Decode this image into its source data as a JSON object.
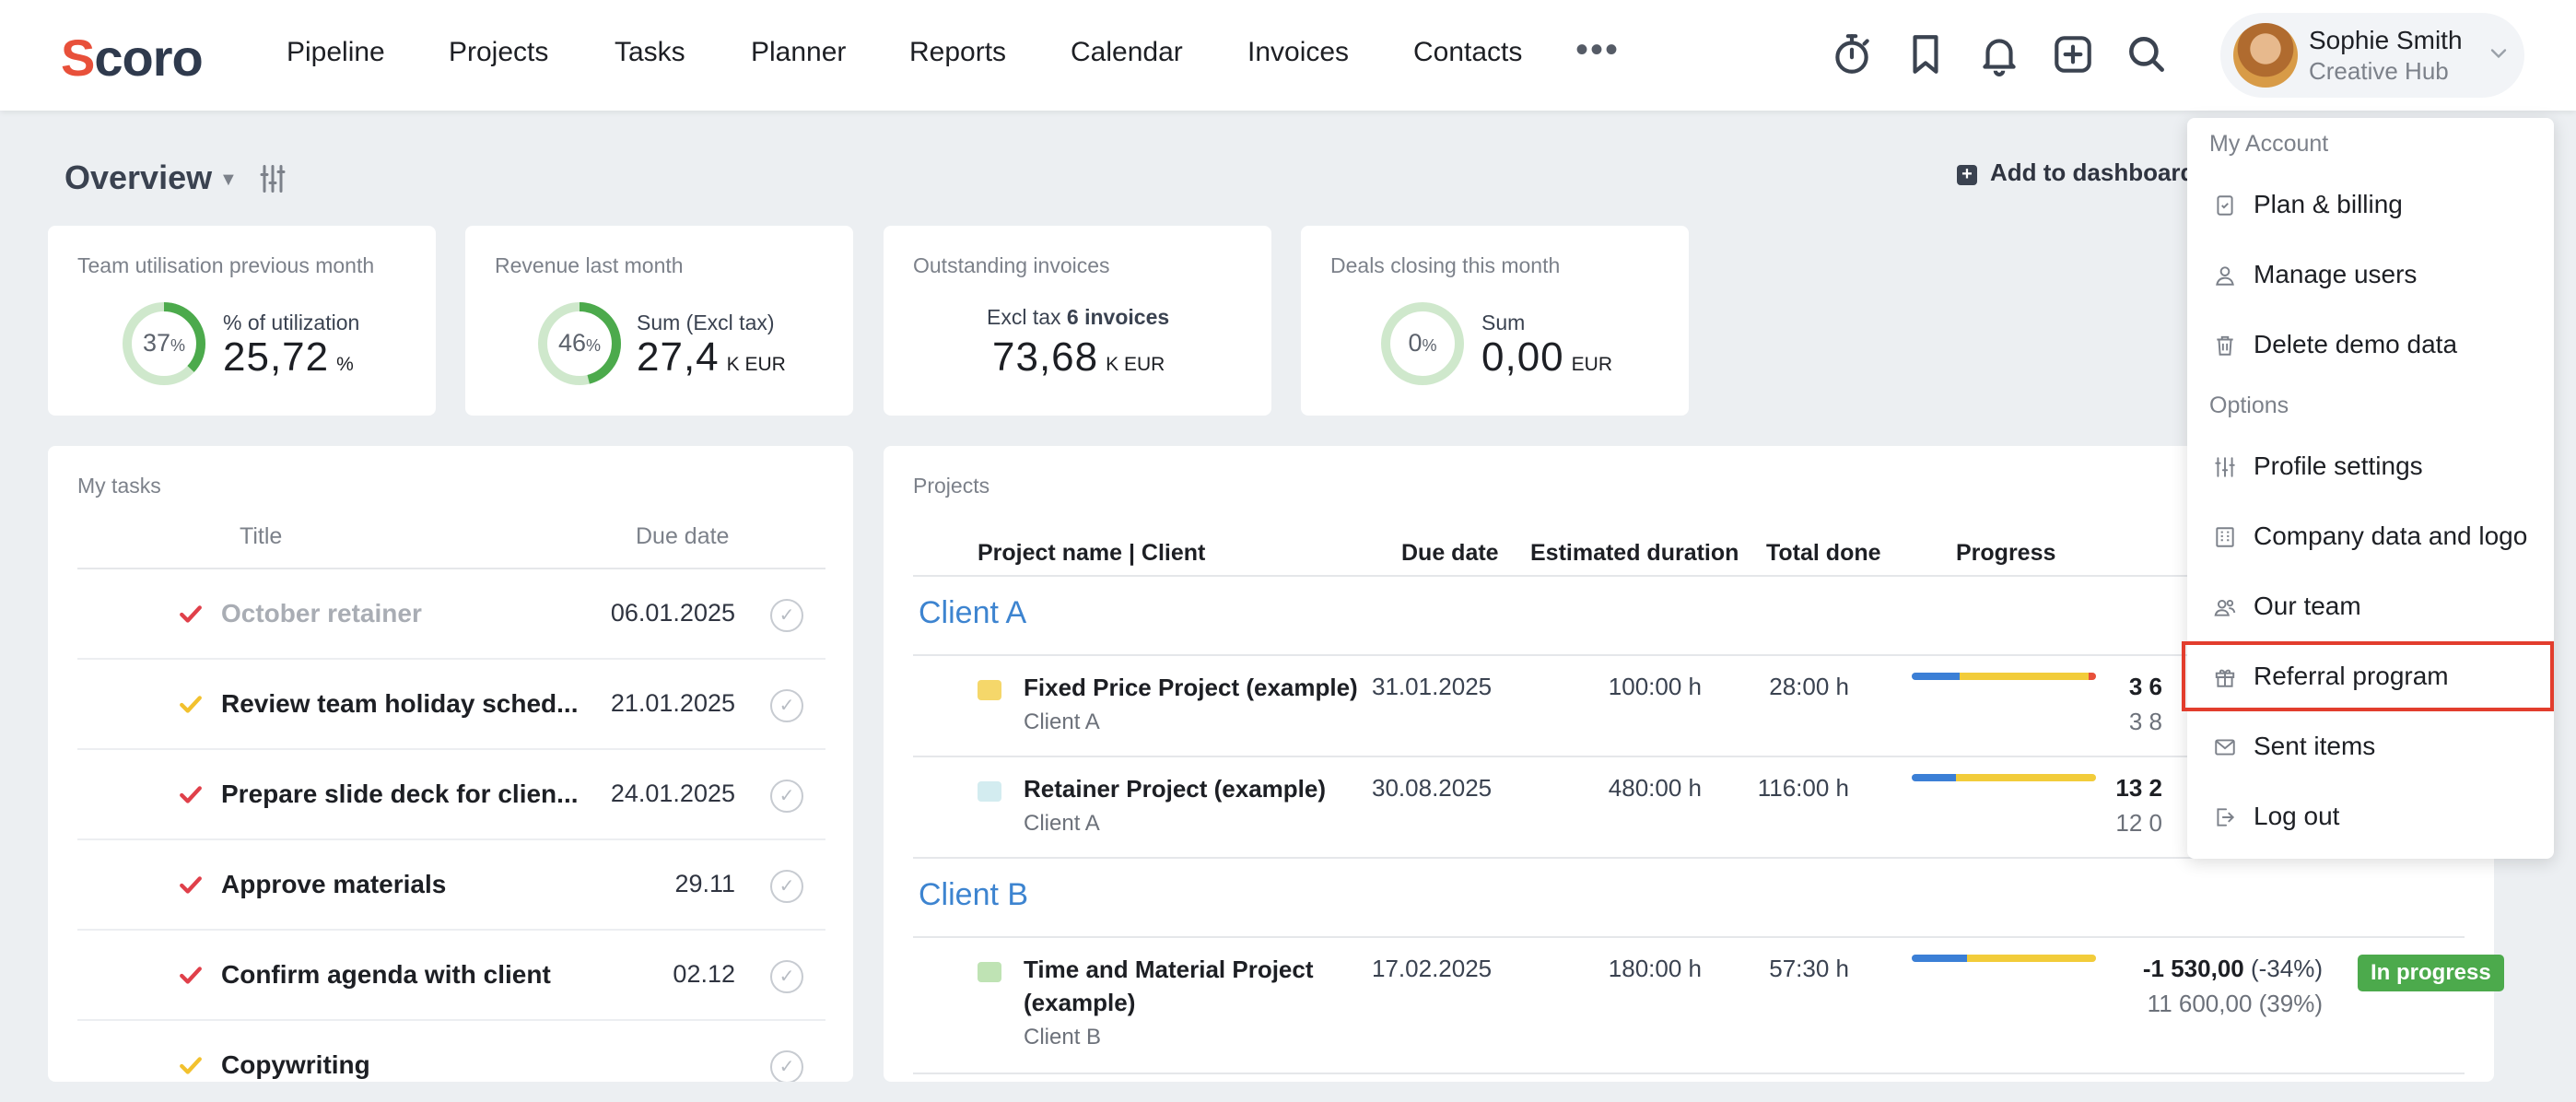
{
  "nav": {
    "logo": "Scoro",
    "items": [
      "Pipeline",
      "Projects",
      "Tasks",
      "Planner",
      "Reports",
      "Calendar",
      "Invoices",
      "Contacts"
    ],
    "more": "•••",
    "icons": [
      "stopwatch-icon",
      "bookmark-icon",
      "bell-icon",
      "add-icon",
      "search-icon"
    ],
    "user": {
      "name": "Sophie Smith",
      "subtitle": "Creative Hub"
    }
  },
  "overview": {
    "title": "Overview",
    "add_to_dashboard": "Add to dashboard"
  },
  "cards": [
    {
      "label": "Team utilisation previous month",
      "ring_value": 37,
      "ring_pct": "%",
      "sub": "% of utilization",
      "value": "25,72",
      "unit": "%"
    },
    {
      "label": "Revenue last month",
      "ring_value": 46,
      "ring_pct": "%",
      "sub": "Sum (Excl tax)",
      "value": "27,4",
      "unit": "K EUR"
    },
    {
      "label": "Outstanding invoices",
      "sub_prefix": "Excl tax",
      "sub_bold": "6 invoices",
      "value": "73,68",
      "unit": "K EUR"
    },
    {
      "label": "Deals closing this month",
      "ring_value": 0,
      "ring_pct": "%",
      "sub": "Sum",
      "value": "0,00",
      "unit": "EUR"
    }
  ],
  "tasks": {
    "label": "My tasks",
    "col_title": "Title",
    "col_due": "Due date",
    "rows": [
      {
        "title": "October retainer",
        "due": "06.01.2025",
        "flag": "red",
        "muted": true
      },
      {
        "title": "Review team holiday sched...",
        "due": "21.01.2025",
        "flag": "yellow",
        "muted": false
      },
      {
        "title": "Prepare slide deck for clien...",
        "due": "24.01.2025",
        "flag": "red",
        "muted": false
      },
      {
        "title": "Approve materials",
        "due": "29.11",
        "flag": "red",
        "muted": false
      },
      {
        "title": "Confirm agenda with client",
        "due": "02.12",
        "flag": "red",
        "muted": false
      },
      {
        "title": "Copywriting",
        "due": "",
        "flag": "yellow",
        "muted": false
      }
    ]
  },
  "projects": {
    "label": "Projects",
    "cols": {
      "name": "Project name | Client",
      "due": "Due date",
      "est": "Estimated duration",
      "done": "Total done",
      "progress": "Progress"
    },
    "groups": [
      {
        "client": "Client A",
        "rows": [
          {
            "name": "Fixed Price Project (example)",
            "client": "Client A",
            "due": "31.01.2025",
            "est": "100:00 h",
            "done": "28:00 h",
            "progress": {
              "blue": 26,
              "yellow": 70,
              "red": 4
            },
            "money1": "3 6",
            "money1_pct": "",
            "money2": "3 8"
          },
          {
            "name": "Retainer Project (example)",
            "client": "Client A",
            "due": "30.08.2025",
            "est": "480:00 h",
            "done": "116:00 h",
            "progress": {
              "blue": 24,
              "yellow": 76,
              "red": 0
            },
            "money1": "13 2",
            "money1_pct": "",
            "money2": "12 0"
          }
        ]
      },
      {
        "client": "Client B",
        "rows": [
          {
            "name": "Time and Material Project (example)",
            "client": "Client B",
            "due": "17.02.2025",
            "est": "180:00 h",
            "done": "57:30 h",
            "progress": {
              "blue": 30,
              "yellow": 70,
              "red": 0
            },
            "money1": "-1 530,00",
            "money1_pct": "(-34%)",
            "money2": "11 600,00 (39%)",
            "status": "In progress"
          }
        ]
      }
    ]
  },
  "account_menu": {
    "section_account": "My Account",
    "section_options": "Options",
    "account_items": [
      {
        "label": "Plan & billing",
        "icon": "billing-icon"
      },
      {
        "label": "Manage users",
        "icon": "user-icon"
      },
      {
        "label": "Delete demo data",
        "icon": "trash-icon"
      }
    ],
    "option_items": [
      {
        "label": "Profile settings",
        "icon": "sliders-icon"
      },
      {
        "label": "Company data and logo",
        "icon": "building-icon"
      },
      {
        "label": "Our team",
        "icon": "team-icon"
      },
      {
        "label": "Referral program",
        "icon": "gift-icon",
        "highlighted": true
      },
      {
        "label": "Sent items",
        "icon": "envelope-icon"
      },
      {
        "label": "Log out",
        "icon": "logout-icon"
      }
    ]
  },
  "colors": {
    "brand": "#e8503a",
    "link_blue": "#3d84d0",
    "ring_green": "#4caa4c",
    "progress_blue": "#3b7fd6",
    "progress_yellow": "#f2cc3a",
    "progress_red": "#e8503a",
    "flag_red": "#e0404a",
    "flag_yellow": "#f2c12e",
    "highlight_box": "#e23d2d"
  }
}
